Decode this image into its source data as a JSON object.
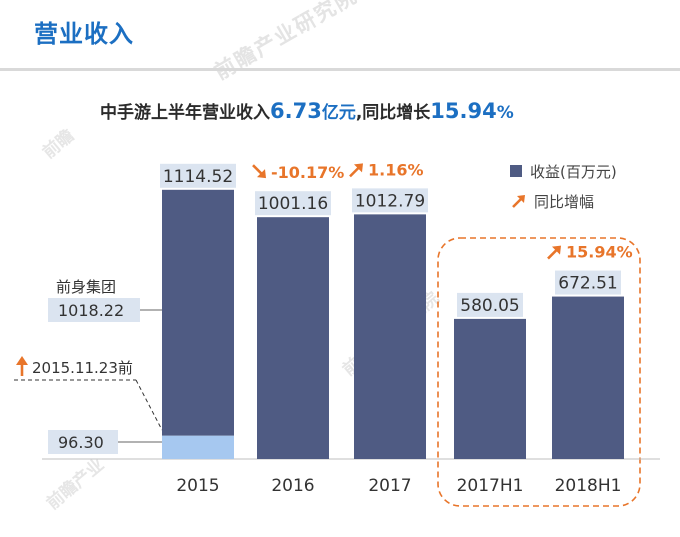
{
  "header": {
    "title": "营业收入",
    "watermark": "前瞻产业研究院"
  },
  "subtitle": {
    "prefix": "中手游上半年营业收入",
    "value1": "6.73",
    "unit1": "亿元",
    "middle": ",同比增长",
    "value2": "15.94",
    "unit2": "%"
  },
  "legend": {
    "revenue": "收益(百万元)",
    "growth": "同比增幅"
  },
  "colors": {
    "bar": "#4f5b83",
    "bar_light": "#a6c8f0",
    "label_bg": "#dbe4f0",
    "growth": "#e8752a",
    "title": "#1c6fc2"
  },
  "chart_data": {
    "type": "bar",
    "categories": [
      "2015",
      "2016",
      "2017",
      "2017H1",
      "2018H1"
    ],
    "values": [
      1114.52,
      1001.16,
      1012.79,
      580.05,
      672.51
    ],
    "value_labels": [
      "1114.52",
      "1001.16",
      "1012.79",
      "580.05",
      "672.51"
    ],
    "growth": [
      null,
      "-10.17%",
      "1.16%",
      null,
      "15.94%"
    ],
    "growth_direction": [
      null,
      "down",
      "up",
      null,
      "up"
    ],
    "stack_2015": {
      "top_label": "前身集团",
      "top_value": 1018.22,
      "top_value_label": "1018.22",
      "bottom_label": "2015.11.23前",
      "bottom_value": 96.3,
      "bottom_value_label": "96.30"
    },
    "highlight": [
      "2017H1",
      "2018H1"
    ],
    "ylim": [
      0,
      1300
    ],
    "grid": false
  }
}
